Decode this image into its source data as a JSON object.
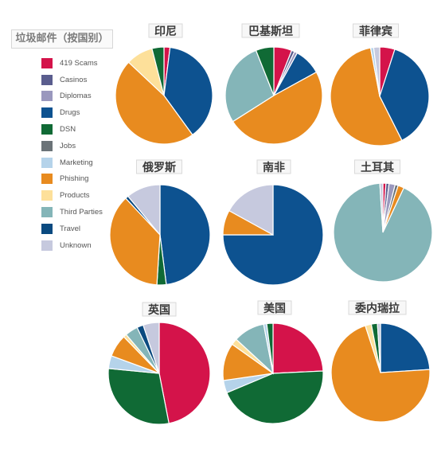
{
  "legend": {
    "title": "垃圾邮件（按国别）",
    "items": [
      {
        "label": "419 Scams",
        "color": "#d4134a"
      },
      {
        "label": "Casinos",
        "color": "#5a5d8e"
      },
      {
        "label": "Diplomas",
        "color": "#9a98be"
      },
      {
        "label": "Drugs",
        "color": "#0d5290"
      },
      {
        "label": "DSN",
        "color": "#106a35"
      },
      {
        "label": "Jobs",
        "color": "#6b7378"
      },
      {
        "label": "Marketing",
        "color": "#b5d3ea"
      },
      {
        "label": "Phishing",
        "color": "#e88b1f"
      },
      {
        "label": "Products",
        "color": "#fde09a"
      },
      {
        "label": "Third Parties",
        "color": "#84b5b8"
      },
      {
        "label": "Travel",
        "color": "#0a4a80"
      },
      {
        "label": "Unknown",
        "color": "#c6c9de"
      }
    ]
  },
  "chart_data": [
    {
      "type": "pie",
      "title": "印尼",
      "categories": [
        "419 Scams",
        "Drugs",
        "Phishing",
        "Products",
        "DSN"
      ],
      "values": [
        2,
        38,
        47,
        9,
        4
      ]
    },
    {
      "type": "pie",
      "title": "巴基斯坦",
      "categories": [
        "419 Scams",
        "Casinos",
        "Diplomas",
        "Drugs",
        "Phishing",
        "Third Parties",
        "DSN"
      ],
      "values": [
        6,
        1,
        1,
        9,
        49,
        28,
        6
      ]
    },
    {
      "type": "pie",
      "title": "菲律宾",
      "categories": [
        "419 Scams",
        "Drugs",
        "Phishing",
        "Marketing",
        "Unknown"
      ],
      "values": [
        5,
        38,
        55,
        1,
        2
      ]
    },
    {
      "type": "pie",
      "title": "俄罗斯",
      "categories": [
        "Drugs",
        "DSN",
        "Phishing",
        "Travel",
        "Unknown"
      ],
      "values": [
        48,
        3,
        37,
        1,
        11
      ]
    },
    {
      "type": "pie",
      "title": "南非",
      "categories": [
        "Drugs",
        "Phishing",
        "Unknown"
      ],
      "values": [
        75,
        8,
        17
      ]
    },
    {
      "type": "pie",
      "title": "土耳其",
      "categories": [
        "419 Scams",
        "Casinos",
        "Diplomas",
        "Jobs",
        "Phishing",
        "Third Parties",
        "Unknown"
      ],
      "values": [
        1,
        1,
        2,
        1,
        2,
        92,
        1
      ]
    },
    {
      "type": "pie",
      "title": "英国",
      "categories": [
        "419 Scams",
        "DSN",
        "Marketing",
        "Phishing",
        "Products",
        "Third Parties",
        "Travel",
        "Unknown"
      ],
      "values": [
        46,
        29,
        4,
        7,
        1,
        4,
        2,
        5
      ]
    },
    {
      "type": "pie",
      "title": "美国",
      "categories": [
        "419 Scams",
        "DSN",
        "Marketing",
        "Phishing",
        "Products",
        "Third Parties",
        "Marketing",
        "DSN"
      ],
      "values": [
        24,
        44,
        4,
        12,
        2,
        10,
        1,
        2
      ]
    },
    {
      "type": "pie",
      "title": "委内瑞拉",
      "categories": [
        "Drugs",
        "Phishing",
        "Products",
        "DSN",
        "Unknown"
      ],
      "values": [
        24,
        71,
        2,
        2,
        1
      ]
    }
  ]
}
